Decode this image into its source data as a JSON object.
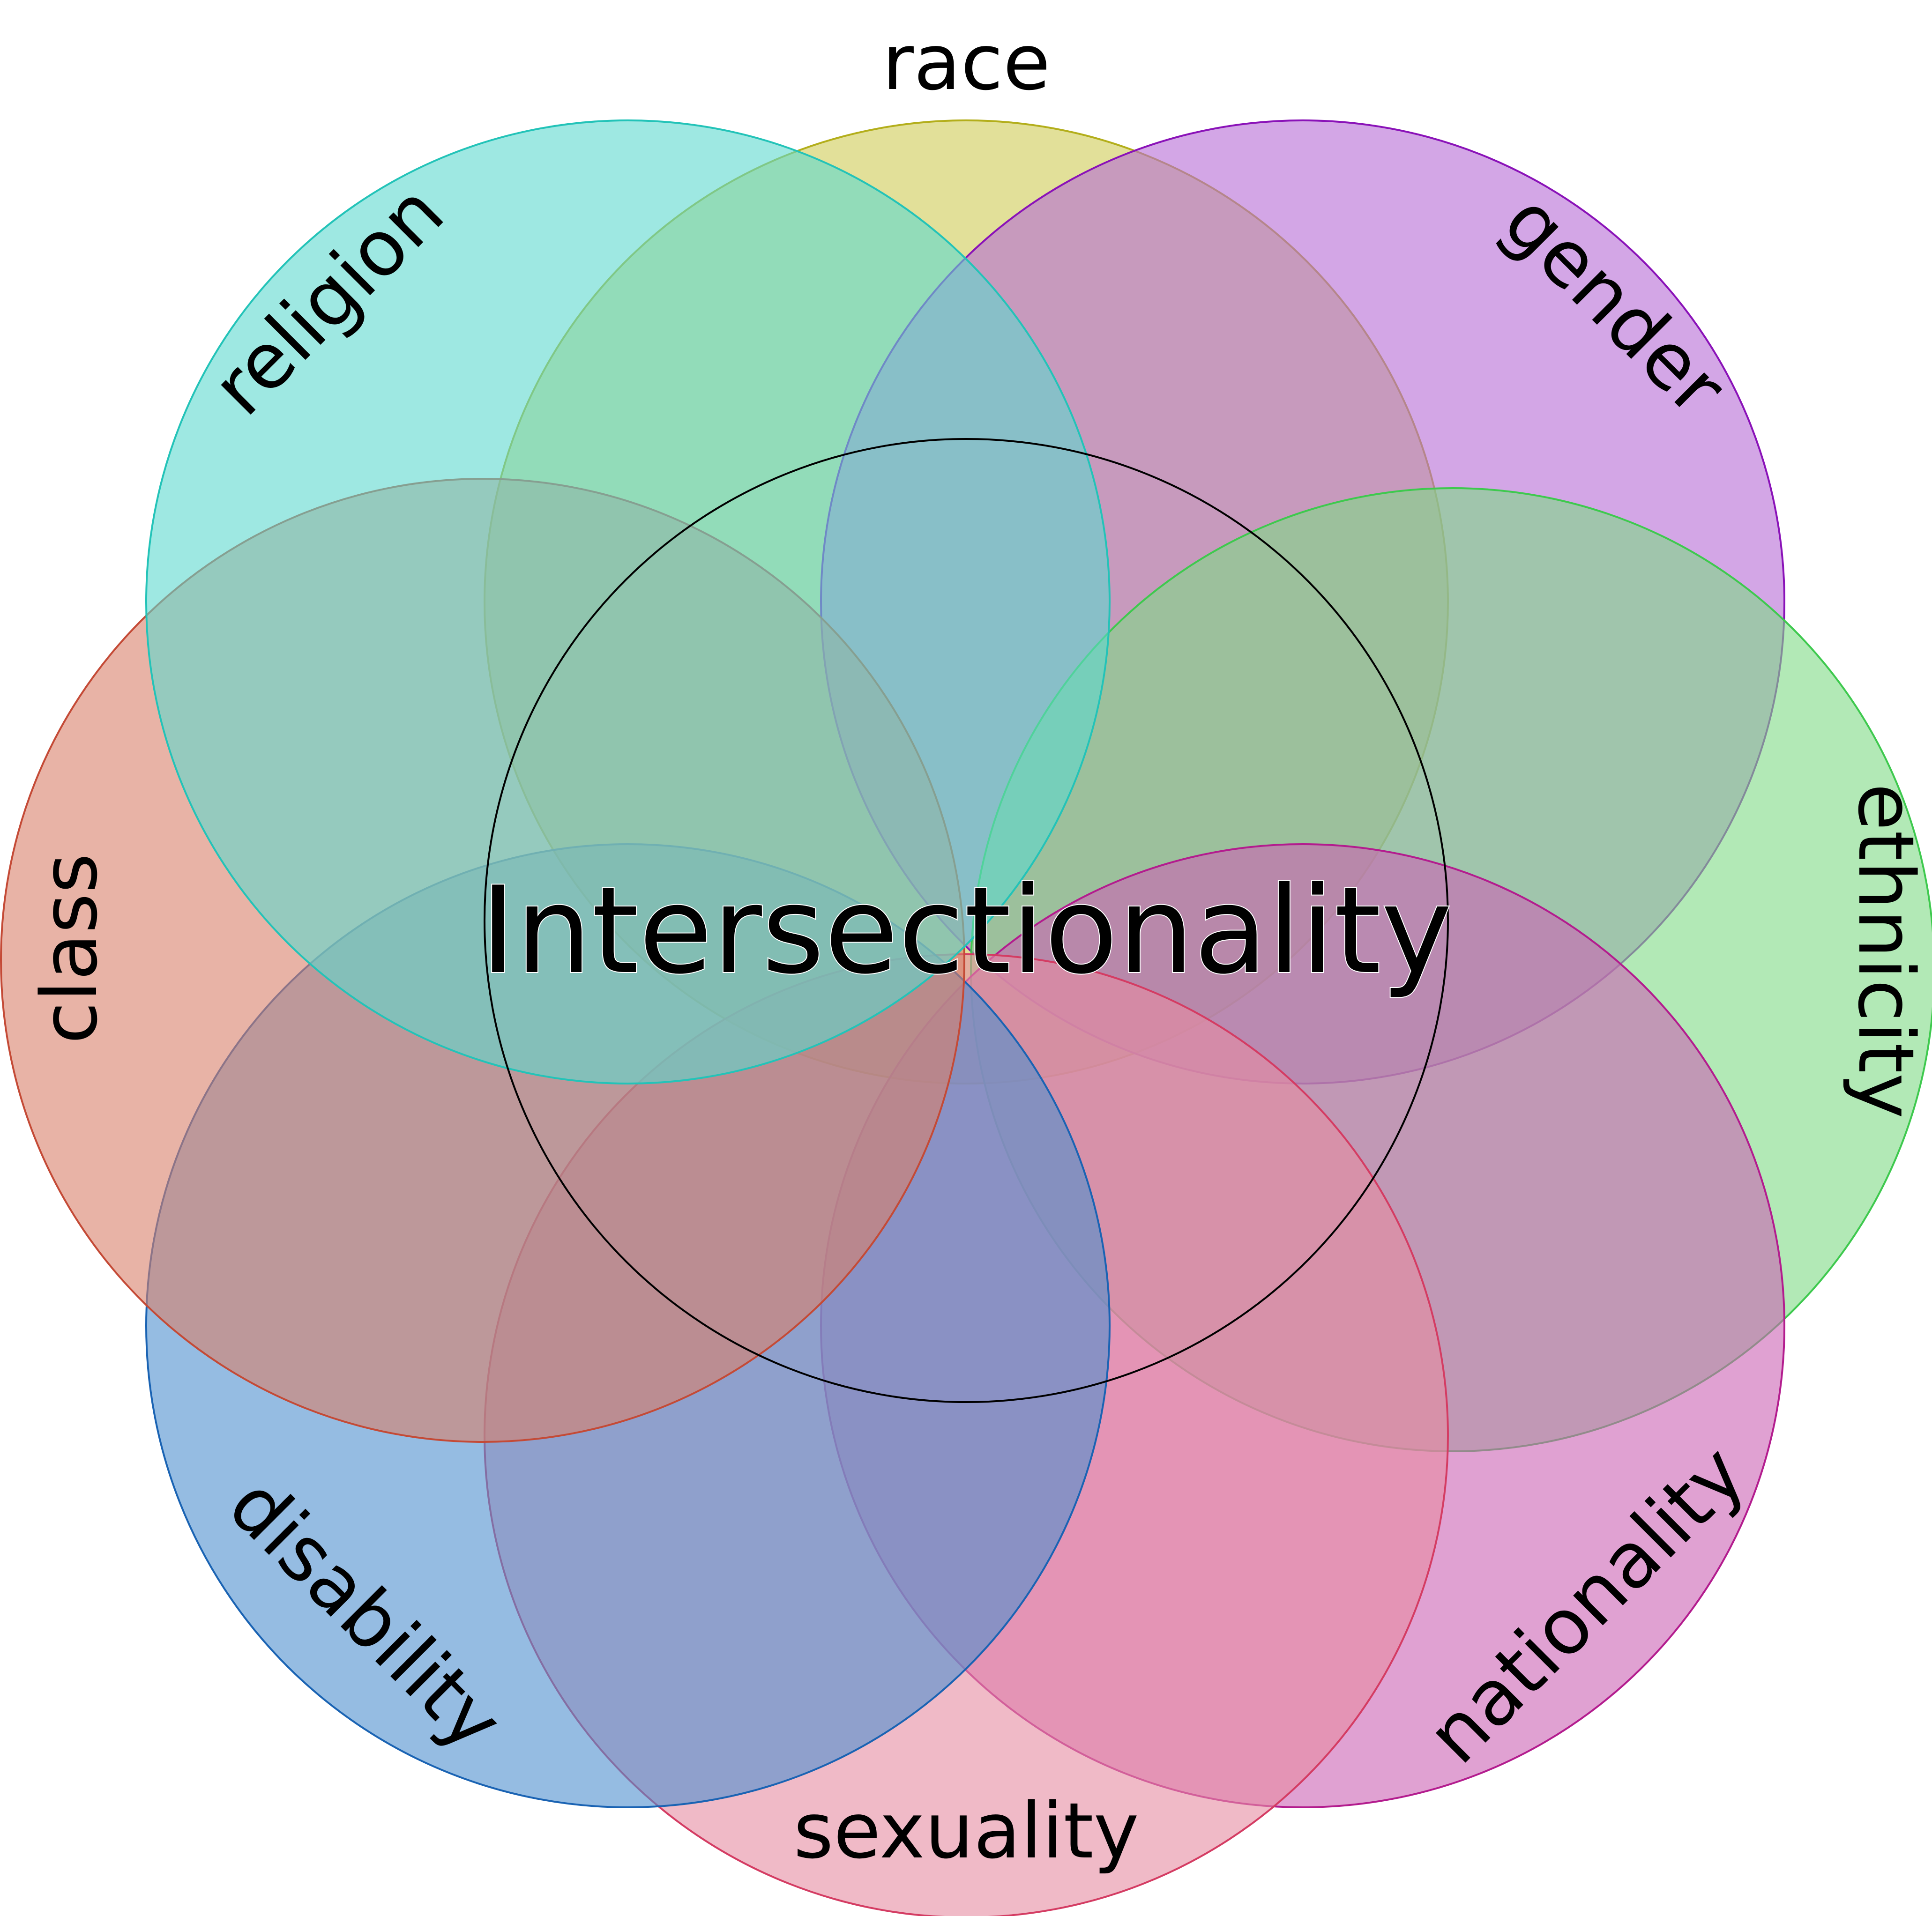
{
  "diagram": {
    "center_label": "Intersectionality",
    "center_stroke": "#000000",
    "circles": [
      {
        "id": "race",
        "label": "race",
        "fill": "#cfcc55",
        "stroke": "#b3ae1b"
      },
      {
        "id": "gender",
        "label": "gender",
        "fill": "#b56ad6",
        "stroke": "#8a12b8"
      },
      {
        "id": "ethnicity",
        "label": "ethnicity",
        "fill": "#7fdb86",
        "stroke": "#3ec94e"
      },
      {
        "id": "nationality",
        "label": "nationality",
        "fill": "#cb62b4",
        "stroke": "#b31c8e"
      },
      {
        "id": "sexuality",
        "label": "sexuality",
        "fill": "#e68ca2",
        "stroke": "#d43c63"
      },
      {
        "id": "disability",
        "label": "disability",
        "fill": "#4f8fcf",
        "stroke": "#1a63b3"
      },
      {
        "id": "class",
        "label": "class",
        "fill": "#d9806b",
        "stroke": "#c44a36"
      },
      {
        "id": "religion",
        "label": "religion",
        "fill": "#5ed8cf",
        "stroke": "#23c3b8"
      }
    ]
  }
}
